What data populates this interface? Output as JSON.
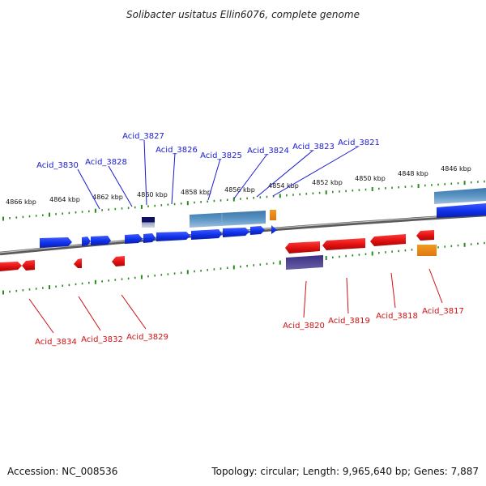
{
  "title": "Solibacter usitatus Ellin6076, complete genome",
  "footer": {
    "accession": "Accession: NC_008536",
    "summary": "Topology: circular; Length: 9,965,640 bp; Genes: 7,887"
  },
  "colors": {
    "forward_label": "#1a1ad0",
    "reverse_label": "#d01010",
    "forward_gene": "#1030e8",
    "reverse_gene": "#e01010",
    "forward_rna": "#4a86b8",
    "reverse_rna": "#4b3f8f",
    "other_feature": "#f08a10",
    "tick": "#2a8a1e",
    "backbone": "#8a8a8a"
  },
  "kbp_scale": [
    "4866 kbp",
    "4864 kbp",
    "4862 kbp",
    "4860 kbp",
    "4858 kbp",
    "4856 kbp",
    "4854 kbp",
    "4852 kbp",
    "4850 kbp",
    "4848 kbp",
    "4846 kbp"
  ],
  "forward_labels": [
    "Acid_3830",
    "Acid_3828",
    "Acid_3827",
    "Acid_3826",
    "Acid_3825",
    "Acid_3824",
    "Acid_3823",
    "Acid_3821"
  ],
  "reverse_labels": [
    "Acid_3834",
    "Acid_3832",
    "Acid_3829",
    "Acid_3820",
    "Acid_3819",
    "Acid_3818",
    "Acid_3817"
  ]
}
